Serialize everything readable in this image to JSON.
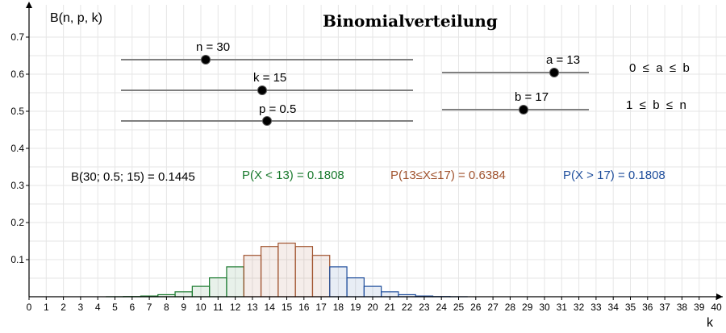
{
  "title": "Binomialverteilung",
  "y_axis_label": "B(n, p, k)",
  "x_axis_label": "k",
  "sliders": {
    "n": {
      "label": "n = 30",
      "value": 30
    },
    "k": {
      "label": "k = 15",
      "value": 15
    },
    "p": {
      "label": "p = 0.5",
      "value": 0.5
    },
    "a": {
      "label": "a = 13",
      "value": 13
    },
    "b": {
      "label": "b = 17",
      "value": 17
    }
  },
  "constraints": {
    "a": "0  ≤  a  ≤  b",
    "b": "1  ≤  b  ≤  n"
  },
  "results": {
    "point": "B(30; 0.5; 15) = 0.1445",
    "lower": "P(X < 13) = 0.1808",
    "middle": "P(13≤X≤17) = 0.6384",
    "upper": "P(X > 17) = 0.1808"
  },
  "colors": {
    "lower": "#1a7a2e",
    "middle": "#a0522d",
    "upper": "#1f4e9c"
  },
  "chart_data": {
    "type": "bar",
    "x": [
      0,
      1,
      2,
      3,
      4,
      5,
      6,
      7,
      8,
      9,
      10,
      11,
      12,
      13,
      14,
      15,
      16,
      17,
      18,
      19,
      20,
      21,
      22,
      23,
      24,
      25,
      26,
      27,
      28,
      29,
      30
    ],
    "values": [
      0.0,
      0.0,
      0.0,
      0.0,
      0.0,
      0.0001,
      0.0006,
      0.0019,
      0.0055,
      0.0133,
      0.028,
      0.0509,
      0.0806,
      0.1115,
      0.1354,
      0.1445,
      0.1354,
      0.1115,
      0.0806,
      0.0509,
      0.028,
      0.0133,
      0.0055,
      0.0019,
      0.0006,
      0.0001,
      0.0,
      0.0,
      0.0,
      0.0,
      0.0
    ],
    "xlim": [
      0,
      40
    ],
    "ylim": [
      0,
      0.7
    ],
    "x_ticks": [
      0,
      1,
      2,
      3,
      4,
      5,
      6,
      7,
      8,
      9,
      10,
      11,
      12,
      13,
      14,
      15,
      16,
      17,
      18,
      19,
      20,
      21,
      22,
      23,
      24,
      25,
      26,
      27,
      28,
      29,
      30,
      31,
      32,
      33,
      34,
      35,
      36,
      37,
      38,
      39,
      40
    ],
    "y_ticks": [
      0.1,
      0.2,
      0.3,
      0.4,
      0.5,
      0.6,
      0.7
    ],
    "grid": true
  }
}
